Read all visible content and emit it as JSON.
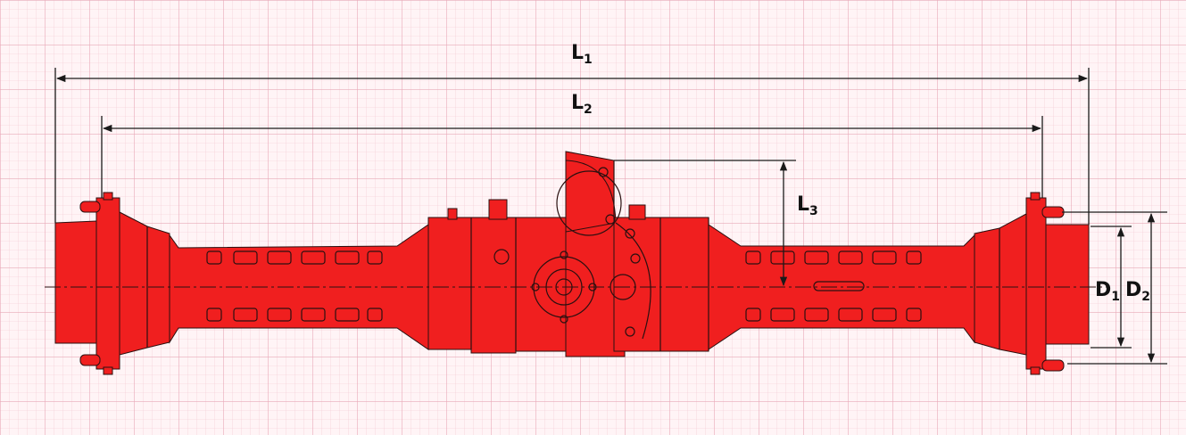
{
  "colors": {
    "paper": "#fff4f6",
    "grid_fine": "#f1c6d0",
    "grid_major": "#e8a9b8",
    "axle_body": "#f01f1f",
    "outline": "#2a1010",
    "dimension_line": "#1a1a1a"
  },
  "dimensions": {
    "L1": {
      "main": "L",
      "sub": "1"
    },
    "L2": {
      "main": "L",
      "sub": "2"
    },
    "L3": {
      "main": "L",
      "sub": "3"
    },
    "D1": {
      "main": "D",
      "sub": "1"
    },
    "D2": {
      "main": "D",
      "sub": "2"
    }
  },
  "icons": {
    "axle": "drive-axle-drawing",
    "arrow": "dimension-arrow"
  }
}
